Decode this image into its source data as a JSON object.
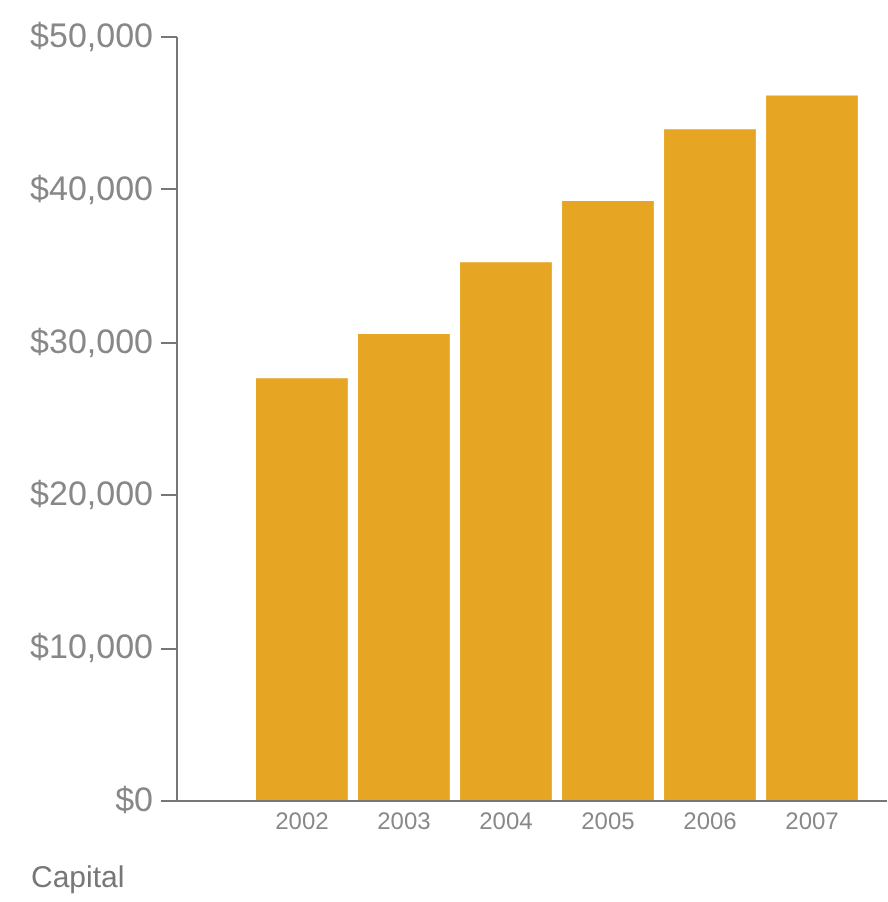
{
  "chart_data": {
    "type": "bar",
    "xlabel": "Capital",
    "categories": [
      "2002",
      "2003",
      "2004",
      "2005",
      "2006",
      "2007"
    ],
    "values": [
      27600,
      30500,
      35200,
      39200,
      43900,
      46100
    ],
    "color": "#e6a623",
    "ylim": [
      0,
      50000
    ],
    "yticks": [
      {
        "value": 0,
        "label": "$0"
      },
      {
        "value": 10000,
        "label": "$10,000"
      },
      {
        "value": 20000,
        "label": "$20,000"
      },
      {
        "value": 30000,
        "label": "$30,000"
      },
      {
        "value": 40000,
        "label": "$40,000"
      },
      {
        "value": 50000,
        "label": "$50,000"
      }
    ],
    "grid": false
  }
}
